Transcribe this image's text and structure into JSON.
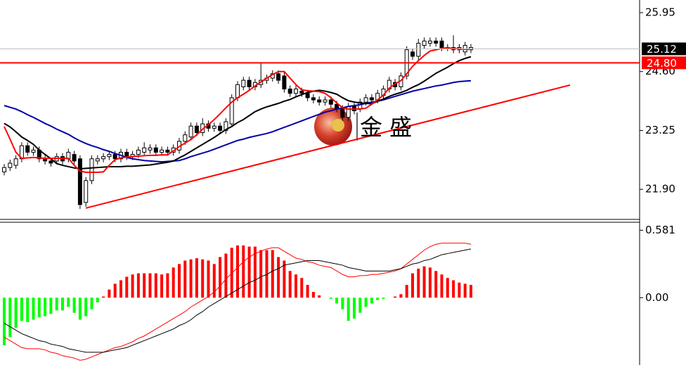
{
  "chart_data": [
    {
      "type": "candlestick",
      "ylim": [
        21.21,
        26.24
      ],
      "yticks": [
        {
          "value": 21.9,
          "label": "21.90"
        },
        23.25,
        {
          "value": 24.6,
          "label": "24.60"
        },
        25.95
      ],
      "up_color": "#ffffff",
      "down_color": "#000000",
      "open": [
        22.3,
        22.4,
        22.45,
        22.6,
        22.9,
        22.75,
        22.8,
        22.6,
        22.55,
        22.55,
        22.65,
        22.6,
        22.7,
        22.6,
        21.6,
        22.1,
        22.55,
        22.6,
        22.65,
        22.7,
        22.6,
        22.75,
        22.65,
        22.7,
        22.75,
        22.8,
        22.85,
        22.75,
        22.8,
        22.75,
        22.8,
        23.0,
        23.1,
        23.35,
        23.2,
        23.4,
        23.3,
        23.35,
        23.25,
        23.4,
        24.0,
        24.25,
        24.4,
        24.25,
        24.3,
        24.4,
        24.45,
        24.55,
        24.5,
        24.2,
        24.1,
        24.15,
        24.1,
        24.0,
        23.95,
        23.9,
        23.95,
        23.85,
        23.75,
        23.55,
        23.8,
        23.75,
        23.9,
        24.0,
        23.95,
        24.05,
        24.2,
        24.35,
        24.25,
        24.5,
        25.05,
        24.95,
        25.2,
        25.25,
        25.3,
        25.3,
        25.15,
        25.15,
        25.1,
        25.05,
        25.1
      ],
      "high": [
        22.48,
        22.58,
        22.68,
        22.98,
        22.98,
        22.88,
        22.88,
        22.68,
        22.63,
        22.73,
        22.73,
        22.83,
        22.78,
        22.68,
        22.18,
        22.68,
        22.68,
        22.73,
        22.78,
        22.78,
        22.83,
        22.83,
        22.78,
        22.88,
        22.98,
        22.93,
        22.93,
        22.88,
        22.88,
        22.93,
        23.08,
        23.23,
        23.43,
        23.43,
        23.53,
        23.48,
        23.43,
        23.43,
        23.53,
        24.08,
        24.38,
        24.48,
        24.48,
        24.43,
        24.8,
        24.53,
        24.63,
        24.63,
        24.58,
        24.28,
        24.28,
        24.23,
        24.18,
        24.08,
        24.03,
        24.03,
        24.03,
        23.93,
        23.83,
        23.88,
        23.88,
        23.98,
        24.08,
        24.08,
        24.18,
        24.28,
        24.48,
        24.43,
        24.58,
        25.18,
        25.13,
        25.35,
        25.38,
        25.38,
        25.38,
        25.38,
        25.23,
        25.43,
        25.23,
        25.28,
        25.23
      ],
      "low": [
        22.22,
        22.32,
        22.37,
        22.52,
        22.67,
        22.67,
        22.52,
        22.47,
        22.42,
        22.47,
        22.47,
        22.52,
        22.47,
        21.45,
        21.5,
        22.02,
        22.47,
        22.52,
        22.57,
        22.52,
        22.52,
        22.57,
        22.57,
        22.62,
        22.67,
        22.72,
        22.67,
        22.67,
        22.67,
        22.67,
        22.72,
        22.92,
        23.02,
        23.12,
        23.12,
        23.22,
        23.22,
        23.17,
        23.17,
        23.32,
        23.92,
        24.17,
        24.17,
        24.17,
        24.22,
        24.32,
        24.37,
        24.32,
        24.12,
        24.02,
        24.02,
        24.02,
        23.92,
        23.87,
        23.82,
        23.82,
        23.77,
        23.67,
        23.47,
        23.47,
        23.62,
        23.67,
        23.82,
        23.87,
        23.87,
        23.97,
        24.12,
        24.17,
        24.17,
        24.42,
        24.87,
        24.87,
        25.12,
        25.17,
        25.17,
        25.07,
        25.07,
        25.02,
        25.02,
        24.97,
        25.02
      ],
      "close": [
        22.4,
        22.5,
        22.6,
        22.9,
        22.75,
        22.8,
        22.6,
        22.55,
        22.5,
        22.65,
        22.55,
        22.75,
        22.55,
        21.55,
        22.1,
        22.6,
        22.6,
        22.65,
        22.7,
        22.6,
        22.75,
        22.65,
        22.7,
        22.8,
        22.85,
        22.85,
        22.75,
        22.8,
        22.75,
        22.85,
        23.0,
        23.15,
        23.35,
        23.2,
        23.4,
        23.3,
        23.35,
        23.25,
        23.45,
        24.0,
        24.3,
        24.4,
        24.25,
        24.35,
        24.4,
        24.45,
        24.55,
        24.4,
        24.2,
        24.1,
        24.2,
        24.1,
        24.0,
        23.95,
        23.9,
        23.95,
        23.85,
        23.75,
        23.55,
        23.8,
        23.7,
        23.9,
        24.0,
        23.95,
        24.1,
        24.2,
        24.4,
        24.25,
        24.5,
        25.1,
        24.95,
        25.25,
        25.3,
        25.3,
        25.25,
        25.15,
        25.15,
        25.1,
        25.15,
        25.2,
        25.15
      ],
      "series": [
        {
          "color": "#0000aa",
          "values": [
            23.82,
            23.78,
            23.74,
            23.68,
            23.61,
            23.55,
            23.48,
            23.41,
            23.35,
            23.28,
            23.22,
            23.16,
            23.08,
            23.01,
            22.95,
            22.9,
            22.86,
            22.81,
            22.77,
            22.72,
            22.68,
            22.63,
            22.6,
            22.58,
            22.56,
            22.55,
            22.54,
            22.53,
            22.54,
            22.55,
            22.56,
            22.6,
            22.65,
            22.69,
            22.73,
            22.77,
            22.82,
            22.87,
            22.92,
            22.97,
            23.02,
            23.05,
            23.09,
            23.12,
            23.15,
            23.18,
            23.22,
            23.27,
            23.32,
            23.37,
            23.42,
            23.47,
            23.52,
            23.57,
            23.62,
            23.67,
            23.7,
            23.74,
            23.77,
            23.8,
            23.82,
            23.84,
            23.87,
            23.9,
            23.92,
            23.95,
            23.99,
            24.03,
            24.07,
            24.11,
            24.15,
            24.18,
            24.21,
            24.24,
            24.27,
            24.29,
            24.32,
            24.35,
            24.37,
            24.38,
            24.39
          ]
        },
        {
          "color": "#000000",
          "values": [
            23.41,
            23.33,
            23.22,
            23.1,
            23.02,
            22.93,
            22.8,
            22.7,
            22.6,
            22.49,
            22.45,
            22.42,
            22.39,
            22.37,
            22.38,
            22.39,
            22.4,
            22.41,
            22.42,
            22.42,
            22.42,
            22.43,
            22.43,
            22.44,
            22.45,
            22.46,
            22.48,
            22.5,
            22.52,
            22.55,
            22.62,
            22.69,
            22.77,
            22.85,
            22.93,
            23.01,
            23.09,
            23.18,
            23.27,
            23.34,
            23.43,
            23.5,
            23.59,
            23.68,
            23.74,
            23.79,
            23.83,
            23.87,
            23.92,
            23.96,
            24.02,
            24.07,
            24.12,
            24.15,
            24.17,
            24.15,
            24.12,
            24.08,
            24.0,
            23.93,
            23.9,
            23.88,
            23.87,
            23.86,
            23.92,
            23.97,
            24.03,
            24.08,
            24.12,
            24.17,
            24.24,
            24.3,
            24.38,
            24.47,
            24.56,
            24.63,
            24.7,
            24.78,
            24.85,
            24.9,
            24.94
          ]
        },
        {
          "color": "#ff0000",
          "values": [
            23.34,
            23.05,
            22.75,
            22.61,
            22.62,
            22.63,
            22.62,
            22.61,
            22.61,
            22.61,
            22.61,
            22.61,
            22.45,
            22.32,
            22.29,
            22.29,
            22.29,
            22.3,
            22.45,
            22.58,
            22.62,
            22.64,
            22.65,
            22.66,
            22.67,
            22.68,
            22.68,
            22.69,
            22.69,
            22.78,
            22.88,
            22.96,
            23.04,
            23.15,
            23.28,
            23.38,
            23.5,
            23.63,
            23.77,
            23.9,
            24.0,
            24.08,
            24.17,
            24.27,
            24.36,
            24.45,
            24.53,
            24.6,
            24.6,
            24.45,
            24.3,
            24.18,
            24.16,
            24.15,
            24.14,
            24.1,
            24.0,
            23.88,
            23.77,
            23.74,
            23.74,
            23.74,
            23.76,
            23.85,
            23.95,
            24.06,
            24.22,
            24.32,
            24.39,
            24.55,
            24.72,
            24.85,
            24.97,
            25.07,
            25.1,
            25.13,
            25.14,
            25.13,
            25.12,
            25.11,
            25.11
          ]
        }
      ],
      "trend_line": {
        "color": "#ff0000",
        "start": [
          14,
          21.47
        ],
        "end": [
          97,
          24.29
        ]
      },
      "price_lines": [
        {
          "value": 25.12,
          "label": "25.12",
          "color": "#c0c0c0",
          "box": "#000000"
        },
        {
          "value": 24.8,
          "label": "24.80",
          "color": "#ff0000",
          "box": "#ff0000"
        }
      ],
      "watermark": "金 盛"
    },
    {
      "type": "macd",
      "ylim": [
        -0.58,
        0.65
      ],
      "yticks": [
        0.581,
        {
          "value": 0,
          "label": "0.00"
        }
      ],
      "positive_color": "#ff0000",
      "negative_color": "#00ff00",
      "histogram": [
        -0.41,
        -0.34,
        -0.26,
        -0.2,
        -0.21,
        -0.19,
        -0.17,
        -0.16,
        -0.14,
        -0.11,
        -0.11,
        -0.08,
        -0.13,
        -0.19,
        -0.16,
        -0.1,
        -0.04,
        0.01,
        0.07,
        0.12,
        0.15,
        0.18,
        0.2,
        0.21,
        0.21,
        0.21,
        0.21,
        0.2,
        0.21,
        0.26,
        0.29,
        0.32,
        0.33,
        0.34,
        0.33,
        0.32,
        0.29,
        0.35,
        0.38,
        0.43,
        0.45,
        0.45,
        0.44,
        0.44,
        0.41,
        0.41,
        0.41,
        0.35,
        0.32,
        0.23,
        0.2,
        0.17,
        0.11,
        0.05,
        0.02,
        0.0,
        -0.01,
        -0.05,
        -0.1,
        -0.2,
        -0.18,
        -0.13,
        -0.08,
        -0.05,
        -0.02,
        -0.01,
        0.0,
        0.01,
        0.03,
        0.11,
        0.21,
        0.25,
        0.27,
        0.26,
        0.23,
        0.2,
        0.17,
        0.15,
        0.13,
        0.12,
        0.11
      ],
      "series": [
        {
          "color": "#ff0000",
          "values": [
            -0.34,
            -0.37,
            -0.4,
            -0.43,
            -0.44,
            -0.44,
            -0.44,
            -0.45,
            -0.47,
            -0.48,
            -0.5,
            -0.51,
            -0.52,
            -0.54,
            -0.53,
            -0.51,
            -0.49,
            -0.47,
            -0.45,
            -0.43,
            -0.42,
            -0.4,
            -0.38,
            -0.35,
            -0.33,
            -0.3,
            -0.27,
            -0.24,
            -0.21,
            -0.18,
            -0.15,
            -0.12,
            -0.08,
            -0.05,
            -0.02,
            0.01,
            0.05,
            0.1,
            0.16,
            0.21,
            0.26,
            0.31,
            0.35,
            0.38,
            0.4,
            0.42,
            0.43,
            0.43,
            0.4,
            0.37,
            0.34,
            0.33,
            0.31,
            0.3,
            0.28,
            0.27,
            0.26,
            0.23,
            0.2,
            0.18,
            0.18,
            0.19,
            0.19,
            0.2,
            0.2,
            0.21,
            0.22,
            0.23,
            0.25,
            0.29,
            0.33,
            0.37,
            0.41,
            0.44,
            0.46,
            0.47,
            0.47,
            0.47,
            0.47,
            0.47,
            0.46
          ]
        },
        {
          "color": "#000000",
          "values": [
            -0.22,
            -0.25,
            -0.28,
            -0.31,
            -0.33,
            -0.35,
            -0.37,
            -0.38,
            -0.4,
            -0.41,
            -0.42,
            -0.44,
            -0.45,
            -0.46,
            -0.47,
            -0.47,
            -0.47,
            -0.47,
            -0.46,
            -0.45,
            -0.44,
            -0.43,
            -0.41,
            -0.39,
            -0.37,
            -0.35,
            -0.33,
            -0.31,
            -0.29,
            -0.27,
            -0.24,
            -0.22,
            -0.19,
            -0.15,
            -0.12,
            -0.08,
            -0.05,
            -0.02,
            0.01,
            0.04,
            0.07,
            0.1,
            0.13,
            0.15,
            0.18,
            0.2,
            0.23,
            0.25,
            0.28,
            0.29,
            0.3,
            0.31,
            0.32,
            0.32,
            0.32,
            0.31,
            0.3,
            0.29,
            0.28,
            0.26,
            0.25,
            0.24,
            0.23,
            0.23,
            0.23,
            0.23,
            0.23,
            0.24,
            0.25,
            0.27,
            0.29,
            0.3,
            0.32,
            0.33,
            0.35,
            0.37,
            0.38,
            0.39,
            0.4,
            0.41,
            0.42
          ]
        }
      ]
    }
  ]
}
